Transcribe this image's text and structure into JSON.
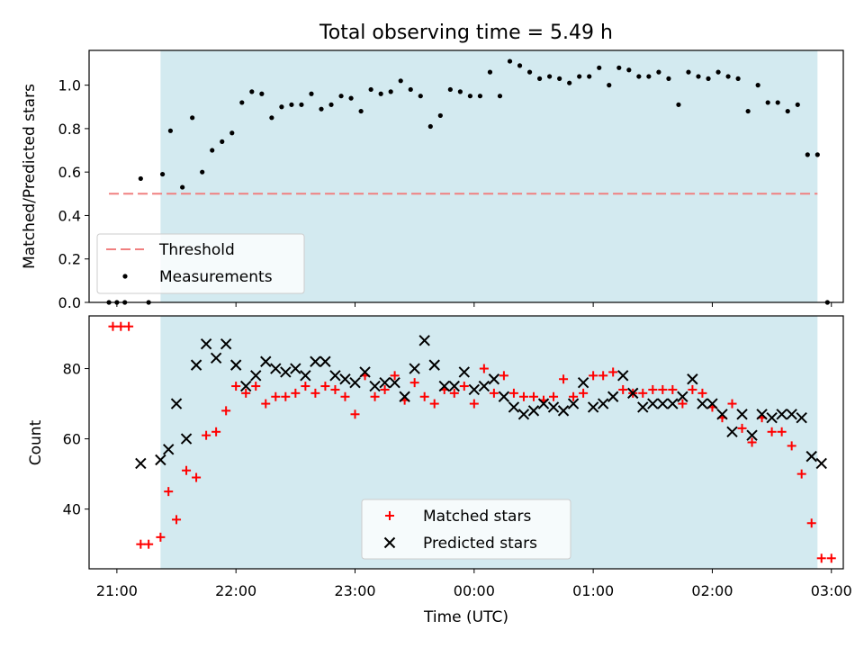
{
  "figure": {
    "title": "Total observing time = 5.49 h",
    "xlabel": "Time (UTC)",
    "shade_color": "#d3eaf0",
    "shade_range": [
      "21:22",
      "02:53"
    ]
  },
  "chart_data": [
    {
      "type": "scatter",
      "ylabel": "Matched/Predicted stars",
      "ylim": [
        0,
        1.16
      ],
      "yticks": [
        "0.0",
        "0.2",
        "0.4",
        "0.6",
        "0.8",
        "1.0"
      ],
      "threshold": {
        "name": "Threshold",
        "value": 0.5,
        "x_range": [
          "20:56",
          "02:53"
        ],
        "color": "#f08080",
        "style": "dashed"
      },
      "series": [
        {
          "name": "Measurements",
          "color": "#000000",
          "marker": "dot",
          "x": [
            "20:56",
            "21:00",
            "21:04",
            "21:12",
            "21:16",
            "21:23",
            "21:27",
            "21:33",
            "21:38",
            "21:43",
            "21:48",
            "21:53",
            "21:58",
            "22:03",
            "22:08",
            "22:13",
            "22:18",
            "22:23",
            "22:28",
            "22:33",
            "22:38",
            "22:43",
            "22:48",
            "22:53",
            "22:58",
            "23:03",
            "23:08",
            "23:13",
            "23:18",
            "23:23",
            "23:28",
            "23:33",
            "23:38",
            "23:43",
            "23:48",
            "23:53",
            "23:58",
            "00:03",
            "00:08",
            "00:13",
            "00:18",
            "00:23",
            "00:28",
            "00:33",
            "00:38",
            "00:43",
            "00:48",
            "00:53",
            "00:58",
            "01:03",
            "01:08",
            "01:13",
            "01:18",
            "01:23",
            "01:28",
            "01:33",
            "01:38",
            "01:43",
            "01:48",
            "01:53",
            "01:58",
            "02:03",
            "02:08",
            "02:13",
            "02:18",
            "02:23",
            "02:28",
            "02:33",
            "02:38",
            "02:43",
            "02:48",
            "02:53",
            "02:58"
          ],
          "y": [
            0.0,
            0.0,
            0.0,
            0.57,
            0.0,
            0.59,
            0.79,
            0.53,
            0.85,
            0.6,
            0.7,
            0.74,
            0.78,
            0.92,
            0.97,
            0.96,
            0.85,
            0.9,
            0.91,
            0.91,
            0.96,
            0.89,
            0.91,
            0.95,
            0.94,
            0.88,
            0.98,
            0.96,
            0.97,
            1.02,
            0.98,
            0.95,
            0.81,
            0.86,
            0.98,
            0.97,
            0.95,
            0.95,
            1.06,
            0.95,
            1.11,
            1.09,
            1.06,
            1.03,
            1.04,
            1.03,
            1.01,
            1.04,
            1.04,
            1.08,
            1.0,
            1.08,
            1.07,
            1.04,
            1.04,
            1.06,
            1.03,
            0.91,
            1.06,
            1.04,
            1.03,
            1.06,
            1.04,
            1.03,
            0.88,
            1.0,
            0.92,
            0.92,
            0.88,
            0.91,
            0.68,
            0.68,
            0.0
          ]
        }
      ]
    },
    {
      "type": "scatter",
      "ylabel": "Count",
      "ylim": [
        23,
        95
      ],
      "yticks": [
        "40",
        "60",
        "80"
      ],
      "series": [
        {
          "name": "Matched stars",
          "color": "#ff0000",
          "marker": "plus",
          "x": [
            "20:58",
            "21:02",
            "21:06",
            "21:12",
            "21:16",
            "21:22",
            "21:26",
            "21:30",
            "21:35",
            "21:40",
            "21:45",
            "21:50",
            "21:55",
            "22:00",
            "22:05",
            "22:10",
            "22:15",
            "22:20",
            "22:25",
            "22:30",
            "22:35",
            "22:40",
            "22:45",
            "22:50",
            "22:55",
            "23:00",
            "23:05",
            "23:10",
            "23:15",
            "23:20",
            "23:25",
            "23:30",
            "23:35",
            "23:40",
            "23:45",
            "23:50",
            "23:55",
            "00:00",
            "00:05",
            "00:10",
            "00:15",
            "00:20",
            "00:25",
            "00:30",
            "00:35",
            "00:40",
            "00:45",
            "00:50",
            "00:55",
            "01:00",
            "01:05",
            "01:10",
            "01:15",
            "01:20",
            "01:25",
            "01:30",
            "01:35",
            "01:40",
            "01:45",
            "01:50",
            "01:55",
            "02:00",
            "02:05",
            "02:10",
            "02:15",
            "02:20",
            "02:25",
            "02:30",
            "02:35",
            "02:40",
            "02:45",
            "02:50",
            "02:55",
            "03:00"
          ],
          "y": [
            92,
            92,
            92,
            30,
            30,
            32,
            45,
            37,
            51,
            49,
            61,
            62,
            68,
            75,
            73,
            75,
            70,
            72,
            72,
            73,
            75,
            73,
            75,
            74,
            72,
            67,
            78,
            72,
            74,
            78,
            71,
            76,
            72,
            70,
            74,
            73,
            75,
            70,
            80,
            73,
            78,
            73,
            72,
            72,
            71,
            72,
            77,
            72,
            73,
            78,
            78,
            79,
            74,
            73,
            73,
            74,
            74,
            74,
            70,
            74,
            73,
            69,
            66,
            70,
            63,
            59,
            66,
            62,
            62,
            58,
            50,
            36,
            26,
            26
          ]
        },
        {
          "name": "Predicted stars",
          "color": "#000000",
          "marker": "x",
          "x": [
            "21:12",
            "21:22",
            "21:26",
            "21:30",
            "21:35",
            "21:40",
            "21:45",
            "21:50",
            "21:55",
            "22:00",
            "22:05",
            "22:10",
            "22:15",
            "22:20",
            "22:25",
            "22:30",
            "22:35",
            "22:40",
            "22:45",
            "22:50",
            "22:55",
            "23:00",
            "23:05",
            "23:10",
            "23:15",
            "23:20",
            "23:25",
            "23:30",
            "23:35",
            "23:40",
            "23:45",
            "23:50",
            "23:55",
            "00:00",
            "00:05",
            "00:10",
            "00:15",
            "00:20",
            "00:25",
            "00:30",
            "00:35",
            "00:40",
            "00:45",
            "00:50",
            "00:55",
            "01:00",
            "01:05",
            "01:10",
            "01:15",
            "01:20",
            "01:25",
            "01:30",
            "01:35",
            "01:40",
            "01:45",
            "01:50",
            "01:55",
            "02:00",
            "02:05",
            "02:10",
            "02:15",
            "02:20",
            "02:25",
            "02:30",
            "02:35",
            "02:40",
            "02:45",
            "02:50",
            "02:55"
          ],
          "y": [
            53,
            54,
            57,
            70,
            60,
            81,
            87,
            83,
            87,
            81,
            75,
            78,
            82,
            80,
            79,
            80,
            78,
            82,
            82,
            78,
            77,
            76,
            79,
            75,
            76,
            76,
            72,
            80,
            88,
            81,
            75,
            75,
            79,
            74,
            75,
            77,
            72,
            69,
            67,
            68,
            70,
            69,
            68,
            70,
            76,
            69,
            70,
            72,
            78,
            73,
            69,
            70,
            70,
            70,
            72,
            77,
            70,
            70,
            67,
            62,
            67,
            61,
            67,
            66,
            67,
            67,
            66,
            55,
            53
          ]
        }
      ]
    }
  ],
  "xaxis": {
    "ticks": [
      "21:00",
      "22:00",
      "23:00",
      "00:00",
      "01:00",
      "02:00",
      "03:00"
    ],
    "start": "20:46",
    "end": "03:06"
  }
}
